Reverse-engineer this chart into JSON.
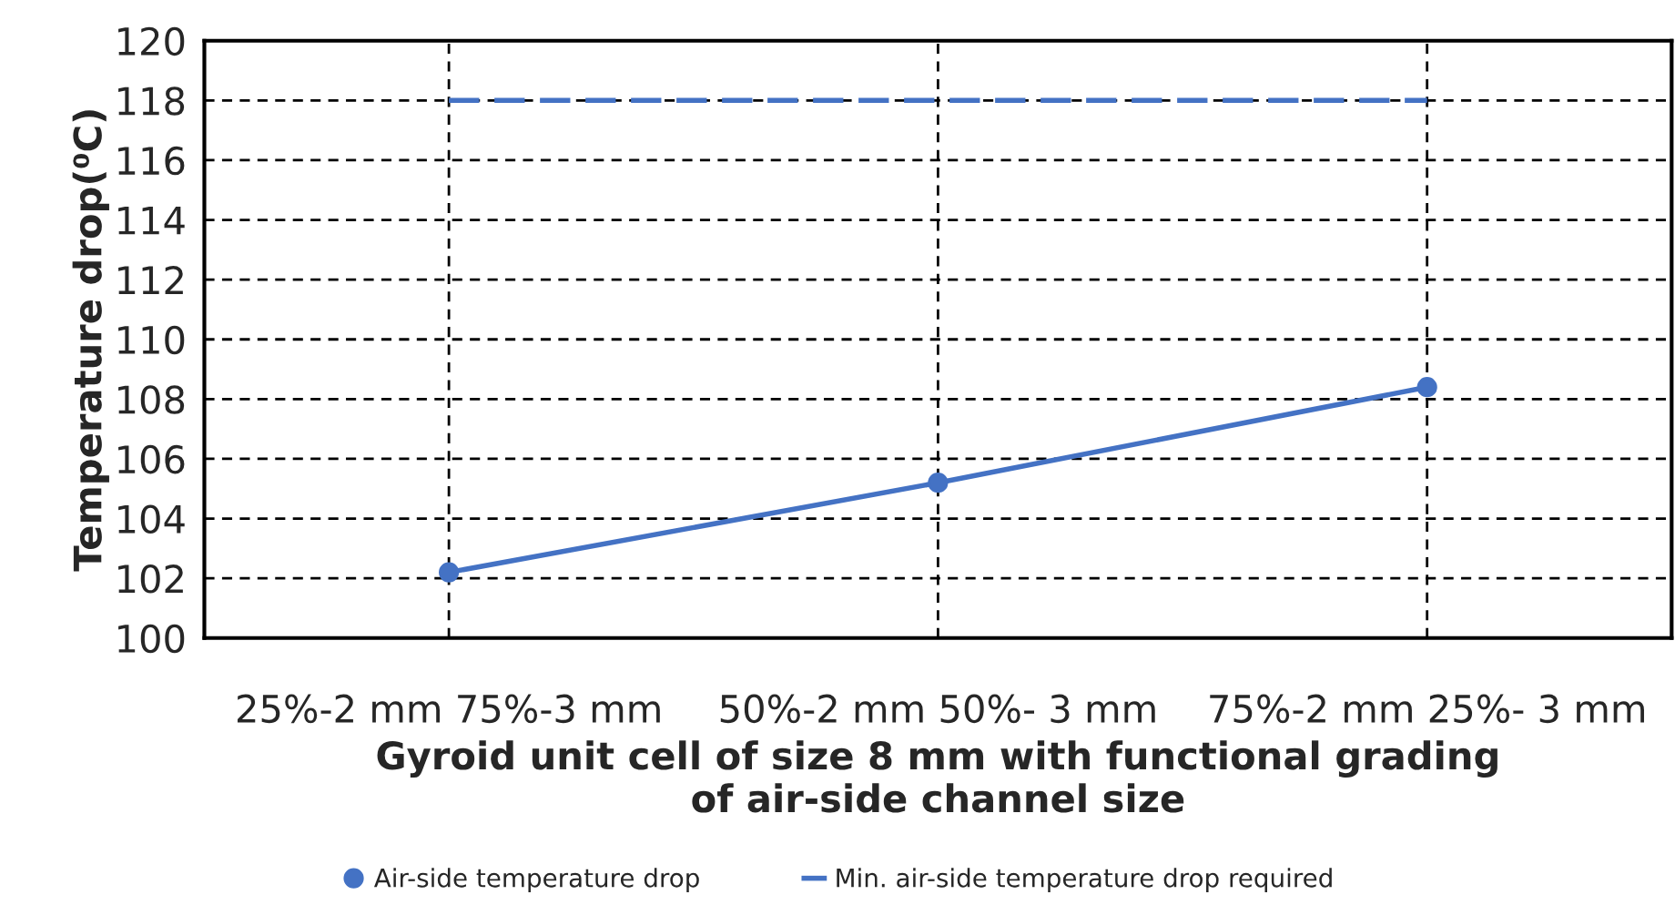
{
  "chart_data": {
    "type": "line",
    "categories": [
      "25%-2 mm 75%-3 mm",
      "50%-2 mm 50%- 3 mm",
      "75%-2 mm 25%- 3 mm"
    ],
    "xlabel": "Gyroid unit cell of size 8 mm with functional grading\nof air-side channel size",
    "ylabel": "Temperature drop(⁰C)",
    "ylim": [
      100,
      120
    ],
    "yticks": [
      100,
      102,
      104,
      106,
      108,
      110,
      112,
      114,
      116,
      118,
      120
    ],
    "grid": true,
    "legend": "bottom",
    "series": [
      {
        "name": "Air-side temperature drop",
        "color": "#4472c4",
        "values": [
          102.2,
          105.2,
          108.4
        ],
        "marker": "circle",
        "line_style": "solid"
      },
      {
        "name": "Min. air-side temperature drop required",
        "color": "#4472c4",
        "values": [
          118,
          118,
          118
        ],
        "marker": "none",
        "line_style": "dashed"
      }
    ]
  }
}
